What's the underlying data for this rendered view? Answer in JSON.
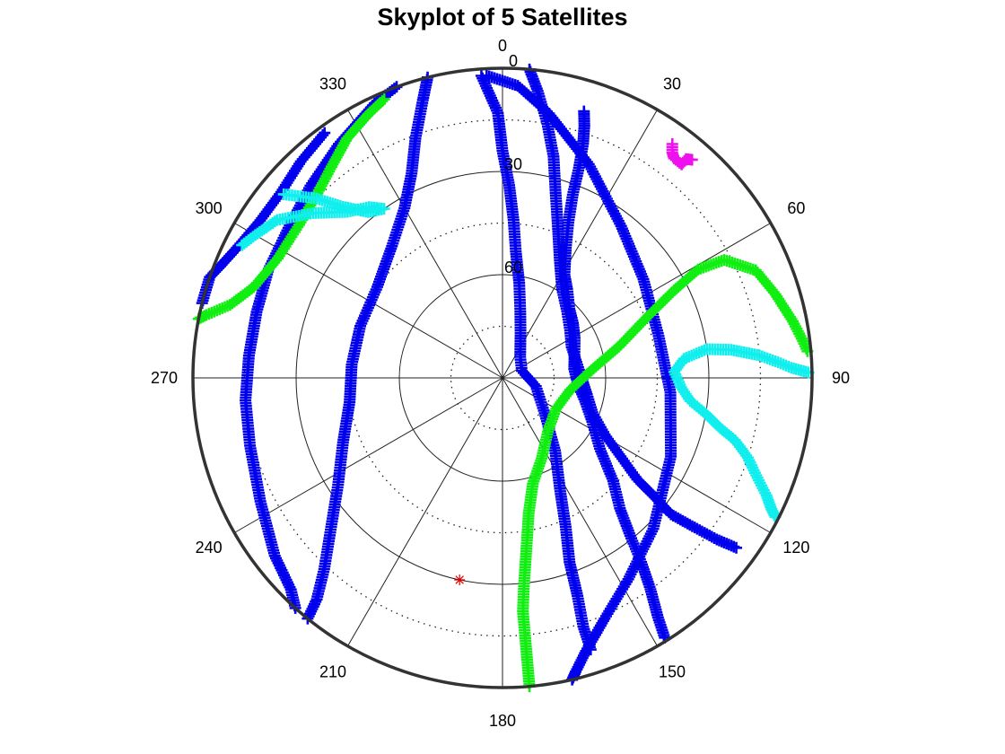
{
  "chart_data": {
    "type": "polar-skyplot",
    "title": "Skyplot of 5 Satellites",
    "azimuth_tick_labels": [
      "0",
      "30",
      "60",
      "90",
      "120",
      "150",
      "180",
      "210",
      "240",
      "270",
      "300",
      "330"
    ],
    "elevation_tick_labels": [
      "0",
      "30",
      "60"
    ],
    "elevation_range": [
      0,
      90
    ],
    "grid": true,
    "colors": {
      "blue": "#0000ee",
      "green": "#11ee11",
      "cyan": "#11eeee",
      "magenta": "#ee11ee",
      "marker": "#dd0000",
      "frame": "#333333",
      "grid": "#222222"
    },
    "series": [
      {
        "color_key": "blue",
        "marker": "+",
        "points": [
          [
            17,
            9
          ],
          [
            18,
            13
          ],
          [
            19,
            18
          ],
          [
            20,
            25
          ],
          [
            21,
            33
          ],
          [
            23,
            41
          ],
          [
            26,
            48
          ],
          [
            31,
            55
          ],
          [
            36,
            58
          ],
          [
            44,
            62
          ],
          [
            52,
            64
          ],
          [
            61,
            66
          ],
          [
            72,
            68
          ],
          [
            83,
            69
          ],
          [
            95,
            68
          ],
          [
            106,
            65
          ],
          [
            116,
            61
          ],
          [
            126,
            55
          ],
          [
            133,
            46
          ],
          [
            138,
            39
          ],
          [
            141,
            31
          ],
          [
            143,
            23
          ],
          [
            145,
            15
          ],
          [
            147,
            7
          ],
          [
            148,
            1
          ]
        ]
      },
      {
        "color_key": "blue",
        "marker": "+",
        "points": [
          [
            5,
            0
          ],
          [
            7,
            6
          ],
          [
            10,
            15
          ],
          [
            13,
            24
          ],
          [
            16,
            34
          ],
          [
            20,
            43
          ],
          [
            26,
            52
          ],
          [
            34,
            59
          ],
          [
            44,
            63
          ],
          [
            55,
            66
          ],
          [
            66,
            68
          ],
          [
            78,
            68
          ],
          [
            90,
            67
          ],
          [
            101,
            65
          ],
          [
            111,
            62
          ],
          [
            119,
            56
          ],
          [
            124,
            48
          ],
          [
            127,
            41
          ],
          [
            128,
            34
          ],
          [
            129,
            27
          ],
          [
            128,
            20
          ],
          [
            127,
            12
          ],
          [
            126,
            6
          ]
        ]
      },
      {
        "color_key": "blue",
        "marker": "+",
        "points": [
          [
            356,
            2
          ],
          [
            359,
            13
          ],
          [
            0,
            24
          ],
          [
            2,
            34
          ],
          [
            4,
            44
          ],
          [
            6,
            53
          ],
          [
            10,
            62
          ],
          [
            15,
            70
          ],
          [
            22,
            76
          ],
          [
            40,
            82
          ],
          [
            70,
            84
          ],
          [
            104,
            80
          ],
          [
            130,
            74
          ],
          [
            144,
            64
          ],
          [
            153,
            53
          ],
          [
            157,
            43
          ],
          [
            160,
            33
          ],
          [
            161,
            23
          ],
          [
            162,
            14
          ],
          [
            162,
            7
          ]
        ]
      },
      {
        "color_key": "blue",
        "marker": "+",
        "points": [
          [
            346,
            0
          ],
          [
            344,
            6
          ],
          [
            340,
            16
          ],
          [
            336,
            25
          ],
          [
            330,
            33
          ],
          [
            320,
            40
          ],
          [
            306,
            45
          ],
          [
            290,
            46
          ],
          [
            275,
            46
          ],
          [
            261,
            45
          ],
          [
            248,
            40
          ],
          [
            237,
            33
          ],
          [
            229,
            24
          ],
          [
            223,
            14
          ],
          [
            220,
            6
          ],
          [
            219,
            0
          ]
        ]
      },
      {
        "color_key": "blue",
        "marker": "+",
        "points": [
          [
            340,
            0
          ],
          [
            335,
            2
          ],
          [
            325,
            7
          ],
          [
            315,
            11
          ],
          [
            305,
            14
          ],
          [
            295,
            15
          ],
          [
            285,
            16
          ],
          [
            275,
            16
          ],
          [
            265,
            15
          ],
          [
            255,
            14
          ],
          [
            243,
            11
          ],
          [
            232,
            6
          ],
          [
            225,
            3
          ],
          [
            222,
            0
          ]
        ]
      },
      {
        "color_key": "blue",
        "marker": "+",
        "points": [
          [
            324,
            2
          ],
          [
            317,
            4
          ],
          [
            310,
            6
          ],
          [
            303,
            6
          ],
          [
            296,
            4
          ],
          [
            292,
            2
          ],
          [
            289,
            0
          ],
          [
            284,
            0
          ]
        ]
      },
      {
        "color_key": "blue",
        "marker": "+",
        "points": [
          [
            357,
            2
          ],
          [
            3,
            5
          ],
          [
            10,
            12
          ],
          [
            22,
            23
          ],
          [
            38,
            34
          ],
          [
            55,
            40
          ],
          [
            75,
            43
          ],
          [
            95,
            41
          ],
          [
            115,
            36
          ],
          [
            135,
            28
          ],
          [
            148,
            21
          ],
          [
            157,
            14
          ],
          [
            163,
            7
          ],
          [
            166,
            2
          ],
          [
            167,
            0
          ]
        ]
      },
      {
        "color_key": "green",
        "marker": "+",
        "points": [
          [
            175,
            0
          ],
          [
            175,
            7
          ],
          [
            175,
            14
          ],
          [
            175,
            22
          ],
          [
            174,
            30
          ],
          [
            172,
            40
          ],
          [
            169,
            50
          ],
          [
            164,
            58
          ],
          [
            154,
            64
          ],
          [
            138,
            70
          ],
          [
            120,
            72
          ],
          [
            100,
            70
          ],
          [
            85,
            64
          ],
          [
            75,
            55
          ],
          [
            67,
            44
          ],
          [
            63,
            34
          ],
          [
            61,
            25
          ],
          [
            62,
            17
          ],
          [
            67,
            10
          ],
          [
            73,
            7
          ],
          [
            79,
            4
          ],
          [
            83,
            2
          ],
          [
            85,
            1
          ]
        ]
      },
      {
        "color_key": "green",
        "marker": "+",
        "points": [
          [
            337,
            2
          ],
          [
            333,
            4
          ],
          [
            327,
            7
          ],
          [
            321,
            11
          ],
          [
            315,
            14
          ],
          [
            307,
            16
          ],
          [
            298,
            16
          ],
          [
            290,
            13
          ],
          [
            285,
            8
          ],
          [
            282,
            2
          ],
          [
            281,
            0
          ]
        ]
      },
      {
        "color_key": "cyan",
        "marker": "+",
        "points": [
          [
            117,
            1
          ],
          [
            116,
            3
          ],
          [
            114,
            6
          ],
          [
            111,
            11
          ],
          [
            108,
            15
          ],
          [
            105,
            20
          ],
          [
            103,
            25
          ],
          [
            100,
            30
          ],
          [
            97,
            35
          ],
          [
            93,
            38
          ],
          [
            88,
            40
          ],
          [
            84,
            37
          ],
          [
            82,
            30
          ],
          [
            83,
            23
          ],
          [
            85,
            15
          ],
          [
            87,
            9
          ],
          [
            88,
            6
          ],
          [
            89,
            1
          ]
        ]
      },
      {
        "color_key": "cyan",
        "marker": "+",
        "points": [
          [
            310,
            7
          ],
          [
            314,
            15
          ],
          [
            317,
            22
          ],
          [
            321,
            28
          ],
          [
            325,
            30
          ],
          [
            322,
            27
          ],
          [
            317,
            24
          ],
          [
            311,
            17
          ],
          [
            305,
            10
          ],
          [
            300,
            7
          ],
          [
            297,
            5
          ]
        ]
      },
      {
        "color_key": "magenta",
        "marker": "+",
        "points": [
          [
            36,
            6
          ],
          [
            37,
            8
          ],
          [
            38,
            9
          ],
          [
            39,
            9
          ],
          [
            40,
            9
          ],
          [
            40,
            7
          ],
          [
            41,
            6
          ]
        ]
      }
    ],
    "star_point": {
      "az": 192,
      "el": 30
    }
  }
}
